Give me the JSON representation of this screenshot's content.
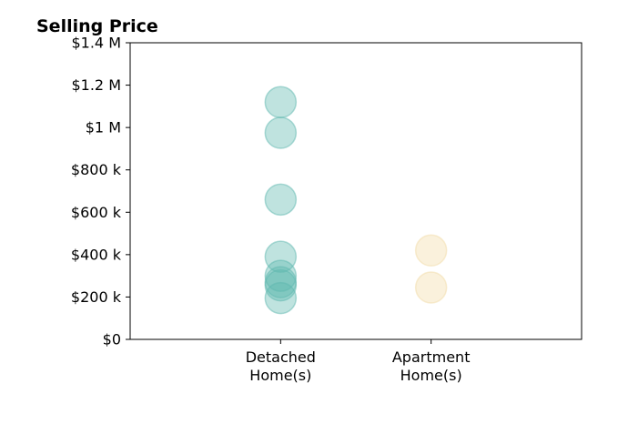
{
  "chart_data": {
    "type": "scatter",
    "title": "Selling Price",
    "xlabel": "",
    "ylabel": "",
    "categories": [
      "Detached\nHome(s)",
      "Apartment\nHome(s)"
    ],
    "y_ticks": [
      {
        "value": 0,
        "label": "$0"
      },
      {
        "value": 200000,
        "label": "$200 k"
      },
      {
        "value": 400000,
        "label": "$400 k"
      },
      {
        "value": 600000,
        "label": "$600 k"
      },
      {
        "value": 800000,
        "label": "$800 k"
      },
      {
        "value": 1000000,
        "label": "$1 M"
      },
      {
        "value": 1200000,
        "label": "$1.2 M"
      },
      {
        "value": 1400000,
        "label": "$1.4 M"
      }
    ],
    "ylim": [
      0,
      1400000
    ],
    "x_range": [
      -1,
      2
    ],
    "grid": false,
    "legend": "none",
    "series": [
      {
        "category": "Detached\nHome(s)",
        "color": "#5fb8b0",
        "values": [
          1120000,
          975000,
          660000,
          390000,
          300000,
          270000,
          255000,
          195000
        ]
      },
      {
        "category": "Apartment\nHome(s)",
        "color": "#f2dba8",
        "values": [
          420000,
          245000
        ]
      }
    ]
  }
}
